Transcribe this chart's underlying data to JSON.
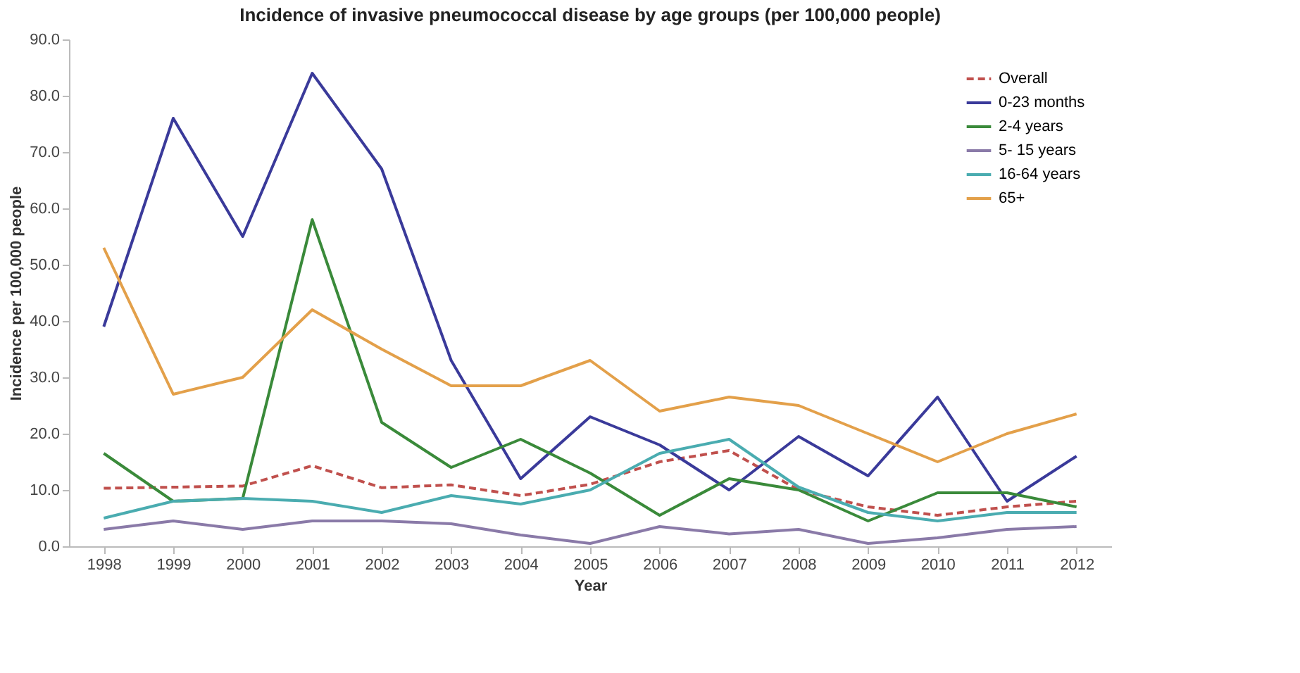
{
  "chart_data": {
    "type": "line",
    "title": "Incidence of invasive pneumococcal disease by age groups (per 100,000 people)",
    "xlabel": "Year",
    "ylabel": "Incidence per 100,000 people",
    "categories": [
      "1998",
      "1999",
      "2000",
      "2001",
      "2002",
      "2003",
      "2004",
      "2005",
      "2006",
      "2007",
      "2008",
      "2009",
      "2010",
      "2011",
      "2012"
    ],
    "ylim": [
      0,
      90
    ],
    "yticks": [
      {
        "value": 0,
        "label": "0.0"
      },
      {
        "value": 10,
        "label": "10.0"
      },
      {
        "value": 20,
        "label": "20.0"
      },
      {
        "value": 30,
        "label": "30.0"
      },
      {
        "value": 40,
        "label": "40.0"
      },
      {
        "value": 50,
        "label": "50.0"
      },
      {
        "value": 60,
        "label": "60.0"
      },
      {
        "value": 70,
        "label": "70.0"
      },
      {
        "value": 80,
        "label": "80.0"
      },
      {
        "value": 90,
        "label": "90.0"
      }
    ],
    "grid": false,
    "legend": "top right",
    "marker": "none",
    "series": [
      {
        "name": "Overall",
        "color": "#c0504d",
        "line_style": "dashed",
        "values": [
          10.3,
          10.5,
          10.7,
          14.3,
          10.4,
          10.9,
          9.0,
          11,
          15,
          17,
          10,
          7,
          5.5,
          7,
          8
        ]
      },
      {
        "name": "0-23 months",
        "color": "#3a3a9a",
        "line_style": "solid",
        "values": [
          39,
          76,
          55,
          84,
          67,
          33,
          12,
          23,
          18,
          10,
          19.5,
          12.5,
          26.5,
          8,
          16
        ]
      },
      {
        "name": "2-4 years",
        "color": "#3a8a3a",
        "line_style": "solid",
        "values": [
          16.5,
          8,
          8.5,
          58,
          22,
          14,
          19,
          13,
          5.5,
          12,
          10,
          4.5,
          9.5,
          9.5,
          7
        ]
      },
      {
        "name": "5- 15 years",
        "color": "#8a7aa8",
        "line_style": "solid",
        "values": [
          3,
          4.5,
          3,
          4.5,
          4.5,
          4,
          2,
          0.5,
          3.5,
          2.2,
          3,
          0.5,
          1.5,
          3,
          3.5
        ]
      },
      {
        "name": "16-64 years",
        "color": "#4aacb0",
        "line_style": "solid",
        "values": [
          5,
          8,
          8.5,
          8,
          6,
          9,
          7.5,
          10,
          16.5,
          19,
          10.5,
          6,
          4.5,
          6,
          6
        ]
      },
      {
        "name": "65+",
        "color": "#e3a04a",
        "line_style": "solid",
        "values": [
          53,
          27,
          30,
          42,
          35,
          28.5,
          28.5,
          33,
          24,
          26.5,
          25,
          20,
          15,
          20,
          23.5
        ]
      }
    ]
  }
}
